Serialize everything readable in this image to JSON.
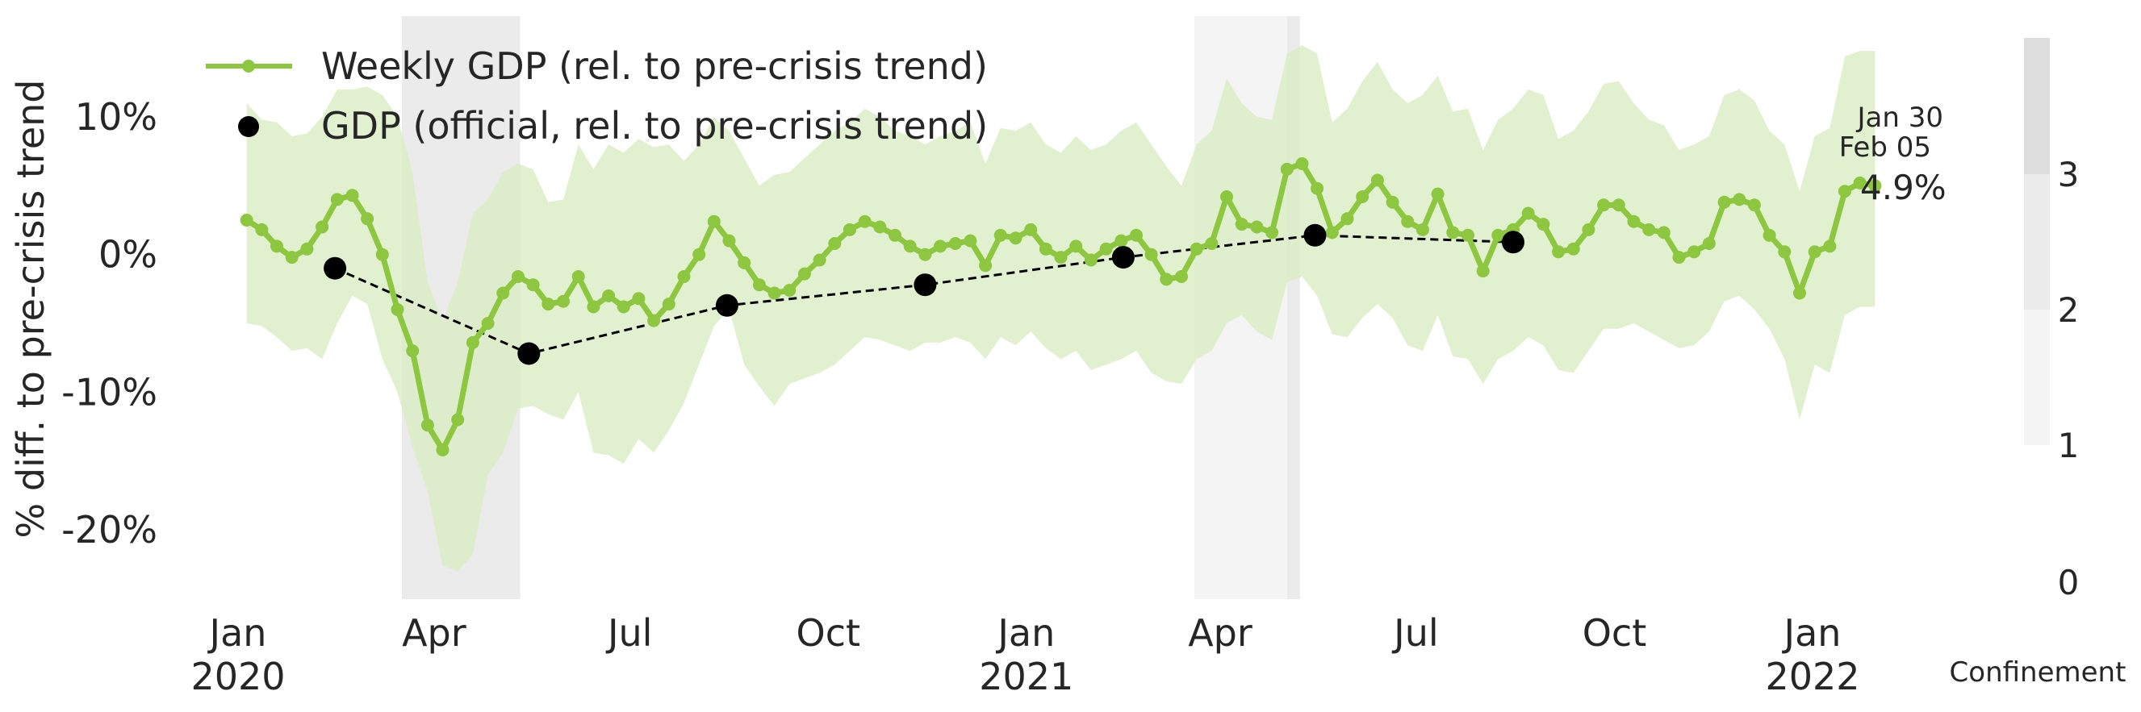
{
  "chart_data": {
    "type": "line",
    "ylabel": "% diff. to pre-crisis trend",
    "ylim": [
      -25,
      15
    ],
    "yticks": [
      10,
      0,
      -10,
      -20
    ],
    "ytick_labels": [
      "10%",
      "0%",
      "-10%",
      "-20%"
    ],
    "xticks": [
      {
        "date": "2020-01-01",
        "label": [
          "Jan",
          "2020"
        ]
      },
      {
        "date": "2020-04-01",
        "label": [
          "Apr"
        ]
      },
      {
        "date": "2020-07-01",
        "label": [
          "Jul"
        ]
      },
      {
        "date": "2020-10-01",
        "label": [
          "Oct"
        ]
      },
      {
        "date": "2021-01-01",
        "label": [
          "Jan",
          "2021"
        ]
      },
      {
        "date": "2021-04-01",
        "label": [
          "Apr"
        ]
      },
      {
        "date": "2021-07-01",
        "label": [
          "Jul"
        ]
      },
      {
        "date": "2021-10-01",
        "label": [
          "Oct"
        ]
      },
      {
        "date": "2022-01-01",
        "label": [
          "Jan",
          "2022"
        ]
      }
    ],
    "grid": false,
    "legend_position": "top-left",
    "series": [
      {
        "name": "Weekly GDP (rel. to pre-crisis trend)",
        "kind": "line-markers",
        "color": "#8dc63f",
        "band_color": "#d9eec4",
        "points": [
          {
            "date": "2020-01-05",
            "y": 2.5,
            "lo": -5.0,
            "hi": 11.0
          },
          {
            "date": "2020-01-12",
            "y": 1.8,
            "lo": -5.2,
            "hi": 9.8
          },
          {
            "date": "2020-01-19",
            "y": 0.6,
            "lo": -6.0,
            "hi": 9.6
          },
          {
            "date": "2020-01-26",
            "y": -0.2,
            "lo": -7.0,
            "hi": 8.6
          },
          {
            "date": "2020-02-02",
            "y": 0.4,
            "lo": -6.8,
            "hi": 8.8
          },
          {
            "date": "2020-02-09",
            "y": 2.0,
            "lo": -7.6,
            "hi": 10.0
          },
          {
            "date": "2020-02-16",
            "y": 4.0,
            "lo": -5.0,
            "hi": 12.0
          },
          {
            "date": "2020-02-23",
            "y": 4.3,
            "lo": -3.0,
            "hi": 12.0
          },
          {
            "date": "2020-03-01",
            "y": 2.6,
            "lo": -3.6,
            "hi": 12.2
          },
          {
            "date": "2020-03-08",
            "y": 0.0,
            "lo": -7.6,
            "hi": 11.6
          },
          {
            "date": "2020-03-15",
            "y": -4.0,
            "lo": -10.0,
            "hi": 10.0
          },
          {
            "date": "2020-03-22",
            "y": -7.0,
            "lo": -14.0,
            "hi": 6.0
          },
          {
            "date": "2020-03-29",
            "y": -12.4,
            "lo": -17.2,
            "hi": -2.0
          },
          {
            "date": "2020-04-05",
            "y": -14.2,
            "lo": -22.6,
            "hi": -4.8
          },
          {
            "date": "2020-04-12",
            "y": -12.0,
            "lo": -23.0,
            "hi": -2.0
          },
          {
            "date": "2020-04-19",
            "y": -6.4,
            "lo": -21.8,
            "hi": 3.0
          },
          {
            "date": "2020-04-26",
            "y": -5.0,
            "lo": -16.0,
            "hi": 4.0
          },
          {
            "date": "2020-05-03",
            "y": -2.8,
            "lo": -14.4,
            "hi": 6.0
          },
          {
            "date": "2020-05-10",
            "y": -1.6,
            "lo": -11.2,
            "hi": 6.6
          },
          {
            "date": "2020-05-17",
            "y": -2.2,
            "lo": -11.0,
            "hi": 6.2
          },
          {
            "date": "2020-05-24",
            "y": -3.6,
            "lo": -11.6,
            "hi": 3.8
          },
          {
            "date": "2020-05-31",
            "y": -3.4,
            "lo": -12.0,
            "hi": 4.0
          },
          {
            "date": "2020-06-07",
            "y": -1.6,
            "lo": -10.0,
            "hi": 8.0
          },
          {
            "date": "2020-06-14",
            "y": -3.8,
            "lo": -14.4,
            "hi": 6.2
          },
          {
            "date": "2020-06-21",
            "y": -3.0,
            "lo": -14.6,
            "hi": 8.0
          },
          {
            "date": "2020-06-28",
            "y": -3.8,
            "lo": -15.2,
            "hi": 7.4
          },
          {
            "date": "2020-07-05",
            "y": -3.2,
            "lo": -13.4,
            "hi": 8.4
          },
          {
            "date": "2020-07-12",
            "y": -4.8,
            "lo": -14.4,
            "hi": 7.8
          },
          {
            "date": "2020-07-19",
            "y": -3.6,
            "lo": -12.8,
            "hi": 8.0
          },
          {
            "date": "2020-07-26",
            "y": -1.6,
            "lo": -10.8,
            "hi": 6.8
          },
          {
            "date": "2020-08-02",
            "y": 0.0,
            "lo": -8.0,
            "hi": 8.0
          },
          {
            "date": "2020-08-09",
            "y": 2.4,
            "lo": -5.2,
            "hi": 10.0
          },
          {
            "date": "2020-08-16",
            "y": 1.0,
            "lo": -4.0,
            "hi": 9.0
          },
          {
            "date": "2020-08-23",
            "y": -0.6,
            "lo": -8.0,
            "hi": 7.0
          },
          {
            "date": "2020-08-30",
            "y": -2.2,
            "lo": -9.6,
            "hi": 5.0
          },
          {
            "date": "2020-09-06",
            "y": -2.8,
            "lo": -11.0,
            "hi": 5.8
          },
          {
            "date": "2020-09-13",
            "y": -2.6,
            "lo": -9.4,
            "hi": 6.0
          },
          {
            "date": "2020-09-20",
            "y": -1.4,
            "lo": -9.0,
            "hi": 7.0
          },
          {
            "date": "2020-09-27",
            "y": -0.4,
            "lo": -8.6,
            "hi": 8.0
          },
          {
            "date": "2020-10-04",
            "y": 0.8,
            "lo": -8.0,
            "hi": 9.0
          },
          {
            "date": "2020-10-11",
            "y": 1.8,
            "lo": -7.0,
            "hi": 9.6
          },
          {
            "date": "2020-10-18",
            "y": 2.4,
            "lo": -6.0,
            "hi": 10.6
          },
          {
            "date": "2020-10-25",
            "y": 2.0,
            "lo": -6.2,
            "hi": 10.0
          },
          {
            "date": "2020-11-01",
            "y": 1.4,
            "lo": -6.6,
            "hi": 9.0
          },
          {
            "date": "2020-11-08",
            "y": 0.6,
            "lo": -7.0,
            "hi": 8.6
          },
          {
            "date": "2020-11-15",
            "y": 0.0,
            "lo": -6.4,
            "hi": 8.0
          },
          {
            "date": "2020-11-22",
            "y": 0.6,
            "lo": -6.4,
            "hi": 8.6
          },
          {
            "date": "2020-11-29",
            "y": 0.8,
            "lo": -6.0,
            "hi": 9.0
          },
          {
            "date": "2020-12-06",
            "y": 1.0,
            "lo": -6.4,
            "hi": 9.6
          },
          {
            "date": "2020-12-13",
            "y": -0.8,
            "lo": -7.6,
            "hi": 6.6
          },
          {
            "date": "2020-12-20",
            "y": 1.4,
            "lo": -6.0,
            "hi": 9.2
          },
          {
            "date": "2020-12-27",
            "y": 1.2,
            "lo": -6.6,
            "hi": 9.0
          },
          {
            "date": "2021-01-03",
            "y": 1.8,
            "lo": -5.6,
            "hi": 9.6
          },
          {
            "date": "2021-01-10",
            "y": 0.4,
            "lo": -6.8,
            "hi": 8.0
          },
          {
            "date": "2021-01-17",
            "y": -0.2,
            "lo": -7.6,
            "hi": 7.4
          },
          {
            "date": "2021-01-24",
            "y": 0.6,
            "lo": -7.0,
            "hi": 8.6
          },
          {
            "date": "2021-01-31",
            "y": -0.4,
            "lo": -8.4,
            "hi": 7.6
          },
          {
            "date": "2021-02-07",
            "y": 0.4,
            "lo": -8.0,
            "hi": 8.0
          },
          {
            "date": "2021-02-14",
            "y": 1.0,
            "lo": -7.6,
            "hi": 9.0
          },
          {
            "date": "2021-02-21",
            "y": 1.4,
            "lo": -7.0,
            "hi": 9.6
          },
          {
            "date": "2021-02-28",
            "y": 0.0,
            "lo": -8.6,
            "hi": 8.0
          },
          {
            "date": "2021-03-07",
            "y": -1.8,
            "lo": -9.2,
            "hi": 6.4
          },
          {
            "date": "2021-03-14",
            "y": -1.6,
            "lo": -9.4,
            "hi": 5.0
          },
          {
            "date": "2021-03-21",
            "y": 0.4,
            "lo": -7.6,
            "hi": 8.0
          },
          {
            "date": "2021-03-28",
            "y": 0.8,
            "lo": -7.0,
            "hi": 9.0
          },
          {
            "date": "2021-04-04",
            "y": 4.2,
            "lo": -5.0,
            "hi": 12.8
          },
          {
            "date": "2021-04-11",
            "y": 2.2,
            "lo": -4.4,
            "hi": 11.0
          },
          {
            "date": "2021-04-18",
            "y": 2.0,
            "lo": -5.6,
            "hi": 10.0
          },
          {
            "date": "2021-04-25",
            "y": 1.6,
            "lo": -6.2,
            "hi": 9.8
          },
          {
            "date": "2021-05-02",
            "y": 6.2,
            "lo": -2.0,
            "hi": 14.6
          },
          {
            "date": "2021-05-09",
            "y": 6.6,
            "lo": -1.6,
            "hi": 15.2
          },
          {
            "date": "2021-05-16",
            "y": 4.8,
            "lo": -3.0,
            "hi": 14.6
          },
          {
            "date": "2021-05-23",
            "y": 1.6,
            "lo": -5.8,
            "hi": 9.6
          },
          {
            "date": "2021-05-30",
            "y": 2.6,
            "lo": -6.0,
            "hi": 10.6
          },
          {
            "date": "2021-06-06",
            "y": 4.2,
            "lo": -4.6,
            "hi": 12.6
          },
          {
            "date": "2021-06-13",
            "y": 5.4,
            "lo": -3.6,
            "hi": 14.0
          },
          {
            "date": "2021-06-20",
            "y": 3.8,
            "lo": -4.6,
            "hi": 12.0
          },
          {
            "date": "2021-06-27",
            "y": 2.4,
            "lo": -6.6,
            "hi": 11.0
          },
          {
            "date": "2021-07-04",
            "y": 1.8,
            "lo": -7.0,
            "hi": 11.6
          },
          {
            "date": "2021-07-11",
            "y": 4.4,
            "lo": -4.4,
            "hi": 13.0
          },
          {
            "date": "2021-07-18",
            "y": 1.6,
            "lo": -7.4,
            "hi": 10.4
          },
          {
            "date": "2021-07-25",
            "y": 1.4,
            "lo": -7.6,
            "hi": 10.6
          },
          {
            "date": "2021-08-01",
            "y": -1.2,
            "lo": -9.4,
            "hi": 7.6
          },
          {
            "date": "2021-08-08",
            "y": 1.4,
            "lo": -7.6,
            "hi": 9.8
          },
          {
            "date": "2021-08-15",
            "y": 1.8,
            "lo": -7.0,
            "hi": 10.6
          },
          {
            "date": "2021-08-22",
            "y": 3.0,
            "lo": -6.0,
            "hi": 12.0
          },
          {
            "date": "2021-08-29",
            "y": 2.2,
            "lo": -6.6,
            "hi": 11.6
          },
          {
            "date": "2021-09-05",
            "y": 0.2,
            "lo": -8.4,
            "hi": 8.4
          },
          {
            "date": "2021-09-12",
            "y": 0.4,
            "lo": -8.6,
            "hi": 9.0
          },
          {
            "date": "2021-09-19",
            "y": 1.8,
            "lo": -7.0,
            "hi": 10.4
          },
          {
            "date": "2021-09-26",
            "y": 3.6,
            "lo": -5.4,
            "hi": 12.4
          },
          {
            "date": "2021-10-03",
            "y": 3.6,
            "lo": -5.4,
            "hi": 12.6
          },
          {
            "date": "2021-10-10",
            "y": 2.4,
            "lo": -5.0,
            "hi": 11.0
          },
          {
            "date": "2021-10-17",
            "y": 1.8,
            "lo": -5.6,
            "hi": 9.8
          },
          {
            "date": "2021-10-24",
            "y": 1.6,
            "lo": -6.2,
            "hi": 9.4
          },
          {
            "date": "2021-10-31",
            "y": -0.2,
            "lo": -6.8,
            "hi": 7.6
          },
          {
            "date": "2021-11-07",
            "y": 0.2,
            "lo": -6.6,
            "hi": 8.0
          },
          {
            "date": "2021-11-14",
            "y": 0.8,
            "lo": -5.6,
            "hi": 8.6
          },
          {
            "date": "2021-11-21",
            "y": 3.8,
            "lo": -3.4,
            "hi": 11.6
          },
          {
            "date": "2021-11-28",
            "y": 4.0,
            "lo": -3.0,
            "hi": 12.0
          },
          {
            "date": "2021-12-05",
            "y": 3.6,
            "lo": -4.0,
            "hi": 11.2
          },
          {
            "date": "2021-12-12",
            "y": 1.4,
            "lo": -5.4,
            "hi": 9.0
          },
          {
            "date": "2021-12-19",
            "y": 0.2,
            "lo": -7.6,
            "hi": 8.0
          },
          {
            "date": "2021-12-26",
            "y": -2.8,
            "lo": -12.0,
            "hi": 4.6
          },
          {
            "date": "2022-01-02",
            "y": 0.2,
            "lo": -8.0,
            "hi": 8.6
          },
          {
            "date": "2022-01-09",
            "y": 0.6,
            "lo": -8.6,
            "hi": 9.2
          },
          {
            "date": "2022-01-16",
            "y": 4.6,
            "lo": -4.4,
            "hi": 14.4
          },
          {
            "date": "2022-01-23",
            "y": 5.2,
            "lo": -3.8,
            "hi": 14.8
          },
          {
            "date": "2022-01-30",
            "y": 5.0,
            "lo": -3.8,
            "hi": 14.8
          }
        ]
      },
      {
        "name": "GDP (official, rel. to pre-crisis trend)",
        "kind": "dashed-markers",
        "color": "#000000",
        "points": [
          {
            "date": "2020-02-15",
            "y": -1.0
          },
          {
            "date": "2020-05-15",
            "y": -7.2
          },
          {
            "date": "2020-08-15",
            "y": -3.7
          },
          {
            "date": "2020-11-15",
            "y": -2.2
          },
          {
            "date": "2021-02-15",
            "y": -0.2
          },
          {
            "date": "2021-05-15",
            "y": 1.4
          },
          {
            "date": "2021-08-15",
            "y": 0.9
          }
        ]
      }
    ],
    "confinement": {
      "label": "Confinement",
      "ticks": [
        "0",
        "1",
        "2",
        "3"
      ],
      "colors": [
        "#ffffff",
        "#f4f4f4",
        "#ebebeb",
        "#dddddd"
      ],
      "periods": [
        {
          "start": "2020-03-17",
          "end": "2020-05-11",
          "level": 2
        },
        {
          "start": "2021-03-20",
          "end": "2021-05-02",
          "level": 1
        },
        {
          "start": "2021-05-02",
          "end": "2021-05-08",
          "level": 2
        }
      ]
    },
    "annotations": {
      "date_label_1": "Jan 30",
      "date_label_2": "Feb 05",
      "last_value_label": "4.9%"
    }
  }
}
